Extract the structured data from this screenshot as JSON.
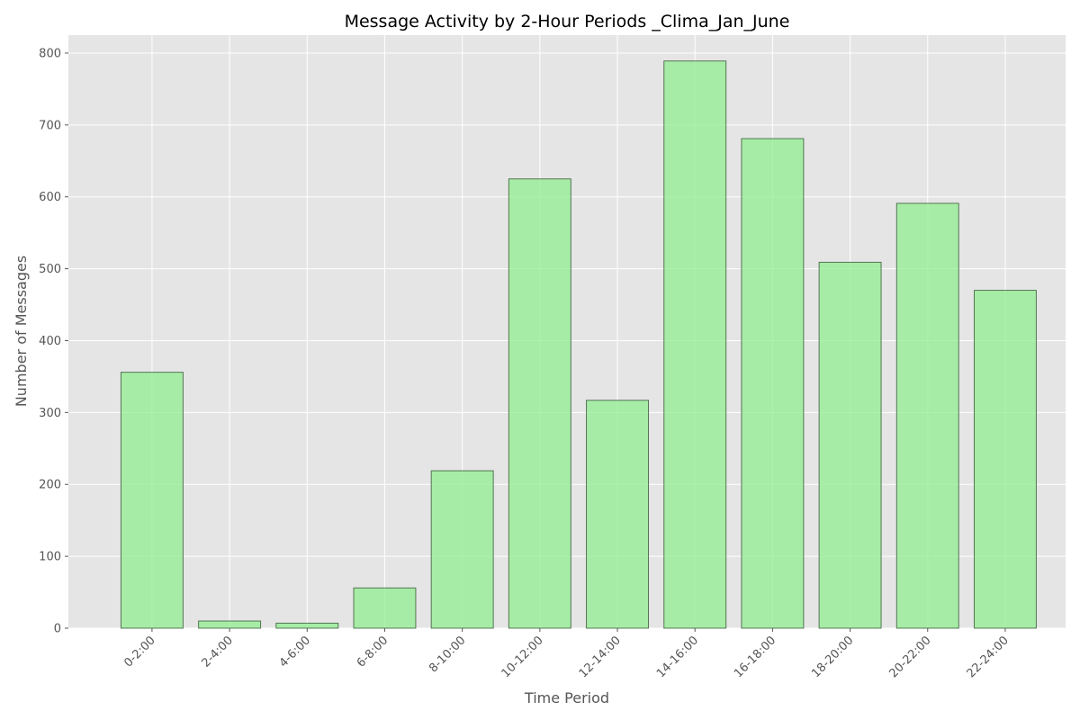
{
  "chart_data": {
    "type": "bar",
    "title": "Message Activity by 2-Hour Periods _Clima_Jan_June",
    "xlabel": "Time Period",
    "ylabel": "Number of Messages",
    "categories": [
      "0-2:00",
      "2-4:00",
      "4-6:00",
      "6-8:00",
      "8-10:00",
      "10-12:00",
      "12-14:00",
      "14-16:00",
      "16-18:00",
      "18-20:00",
      "20-22:00",
      "22-24:00"
    ],
    "values": [
      356,
      10,
      7,
      56,
      219,
      625,
      317,
      789,
      681,
      509,
      591,
      470
    ],
    "ylim": [
      0,
      825
    ],
    "yticks": [
      0,
      100,
      200,
      300,
      400,
      500,
      600,
      700,
      800
    ],
    "grid": true,
    "bar_color": "#90ee90",
    "bar_edge_color": "#2f4f2f",
    "background_color": "#e5e5e5"
  }
}
